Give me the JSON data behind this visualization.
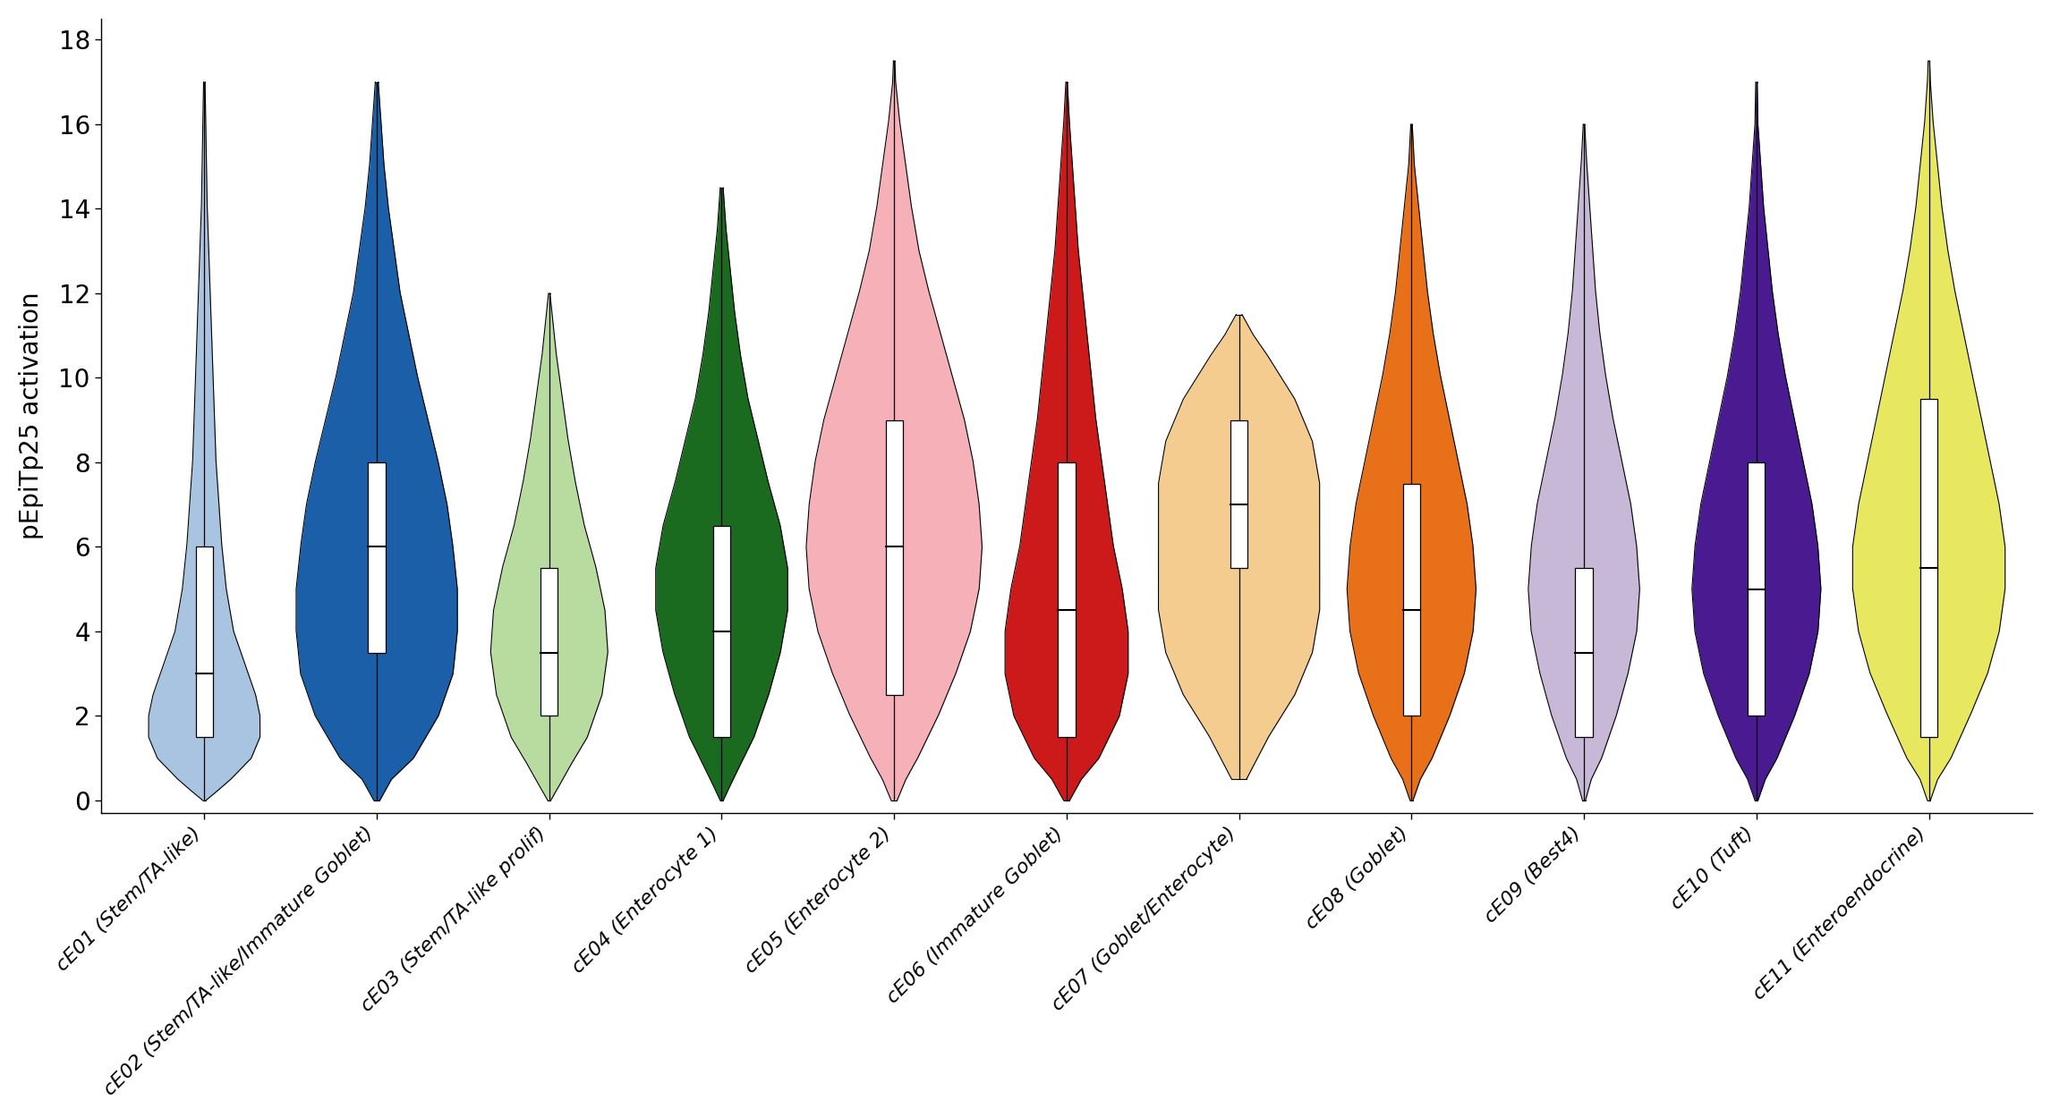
{
  "categories": [
    "cE01 (Stem/TA-like)",
    "cE02 (Stem/TA-like/Immature Goblet)",
    "cE03 (Stem/TA-like prolif)",
    "cE04 (Enterocyte 1)",
    "cE05 (Enterocyte 2)",
    "cE06 (Immature Goblet)",
    "cE07 (Goblet/Enterocyte)",
    "cE08 (Goblet)",
    "cE09 (Best4)",
    "cE10 (Tuft)",
    "cE11 (Enteroendocrine)"
  ],
  "colors": [
    "#a8c4e0",
    "#1a5fa8",
    "#b8dca0",
    "#1a6b20",
    "#f5b0b8",
    "#cc1a1a",
    "#f5cc90",
    "#e87018",
    "#c8b8d8",
    "#4a1a90",
    "#e8e860"
  ],
  "violin_shapes": [
    {
      "name": "cE01",
      "y_vals": [
        0.0,
        0.2,
        0.5,
        1.0,
        1.5,
        2.0,
        2.5,
        3.0,
        3.5,
        4.0,
        5.0,
        6.0,
        7.0,
        8.0,
        9.0,
        10.0,
        11.0,
        12.0,
        13.0,
        14.0,
        15.0,
        16.0,
        17.0
      ],
      "widths": [
        0.01,
        0.08,
        0.18,
        0.32,
        0.38,
        0.38,
        0.35,
        0.3,
        0.25,
        0.2,
        0.15,
        0.12,
        0.1,
        0.08,
        0.07,
        0.06,
        0.05,
        0.04,
        0.03,
        0.02,
        0.015,
        0.01,
        0.005
      ],
      "median": 3.0,
      "q1": 1.5,
      "q3": 6.0,
      "whisker_lo": 0.0,
      "whisker_hi": 17.0
    },
    {
      "name": "cE02",
      "y_vals": [
        0.0,
        0.5,
        1.0,
        2.0,
        3.0,
        4.0,
        5.0,
        6.0,
        7.0,
        8.0,
        9.0,
        10.0,
        11.0,
        12.0,
        13.0,
        14.0,
        15.0,
        16.0,
        17.0
      ],
      "widths": [
        0.02,
        0.1,
        0.25,
        0.42,
        0.52,
        0.55,
        0.55,
        0.52,
        0.48,
        0.42,
        0.35,
        0.28,
        0.22,
        0.16,
        0.12,
        0.08,
        0.05,
        0.03,
        0.01
      ],
      "median": 6.0,
      "q1": 3.5,
      "q3": 8.0,
      "whisker_lo": 0.0,
      "whisker_hi": 17.0
    },
    {
      "name": "cE03",
      "y_vals": [
        0.0,
        0.3,
        0.8,
        1.5,
        2.5,
        3.5,
        4.5,
        5.5,
        6.5,
        7.5,
        8.5,
        9.5,
        10.5,
        11.5,
        12.0
      ],
      "widths": [
        0.01,
        0.06,
        0.14,
        0.26,
        0.36,
        0.4,
        0.38,
        0.32,
        0.24,
        0.18,
        0.13,
        0.09,
        0.05,
        0.02,
        0.005
      ],
      "median": 3.5,
      "q1": 2.0,
      "q3": 5.5,
      "whisker_lo": 0.0,
      "whisker_hi": 12.0
    },
    {
      "name": "cE04",
      "y_vals": [
        0.0,
        0.3,
        0.8,
        1.5,
        2.5,
        3.5,
        4.5,
        5.5,
        6.5,
        7.5,
        8.5,
        9.5,
        10.5,
        11.5,
        12.5,
        13.5,
        14.5
      ],
      "widths": [
        0.01,
        0.05,
        0.12,
        0.22,
        0.32,
        0.4,
        0.45,
        0.45,
        0.4,
        0.32,
        0.25,
        0.18,
        0.13,
        0.09,
        0.06,
        0.03,
        0.01
      ],
      "median": 4.0,
      "q1": 1.5,
      "q3": 6.5,
      "whisker_lo": 0.0,
      "whisker_hi": 14.5
    },
    {
      "name": "cE05",
      "y_vals": [
        0.0,
        0.5,
        1.0,
        2.0,
        3.0,
        4.0,
        5.0,
        6.0,
        7.0,
        8.0,
        9.0,
        10.0,
        11.0,
        12.0,
        13.0,
        14.0,
        15.0,
        16.0,
        17.0,
        17.5
      ],
      "widths": [
        0.02,
        0.08,
        0.16,
        0.3,
        0.42,
        0.52,
        0.58,
        0.6,
        0.58,
        0.54,
        0.48,
        0.4,
        0.32,
        0.24,
        0.17,
        0.12,
        0.08,
        0.04,
        0.01,
        0.005
      ],
      "median": 6.0,
      "q1": 2.5,
      "q3": 9.0,
      "whisker_lo": 0.0,
      "whisker_hi": 17.5
    },
    {
      "name": "cE06",
      "y_vals": [
        0.0,
        0.5,
        1.0,
        2.0,
        3.0,
        4.0,
        5.0,
        6.0,
        7.0,
        8.0,
        9.0,
        10.0,
        11.0,
        12.0,
        13.0,
        14.0,
        15.0,
        16.0,
        17.0
      ],
      "widths": [
        0.02,
        0.1,
        0.22,
        0.36,
        0.42,
        0.42,
        0.38,
        0.32,
        0.28,
        0.24,
        0.2,
        0.17,
        0.14,
        0.11,
        0.08,
        0.06,
        0.04,
        0.02,
        0.005
      ],
      "median": 4.5,
      "q1": 1.5,
      "q3": 8.0,
      "whisker_lo": 0.0,
      "whisker_hi": 17.0
    },
    {
      "name": "cE07",
      "y_vals": [
        0.5,
        1.5,
        2.5,
        3.5,
        4.5,
        5.5,
        6.5,
        7.5,
        8.5,
        9.5,
        10.5,
        11.0,
        11.5
      ],
      "widths": [
        0.05,
        0.2,
        0.38,
        0.5,
        0.55,
        0.55,
        0.55,
        0.55,
        0.5,
        0.38,
        0.2,
        0.1,
        0.02
      ],
      "median": 7.0,
      "q1": 5.5,
      "q3": 9.0,
      "whisker_lo": 0.5,
      "whisker_hi": 11.5
    },
    {
      "name": "cE08",
      "y_vals": [
        0.0,
        0.5,
        1.0,
        2.0,
        3.0,
        4.0,
        5.0,
        6.0,
        7.0,
        8.0,
        9.0,
        10.0,
        11.0,
        12.0,
        13.0,
        14.0,
        15.0,
        16.0
      ],
      "widths": [
        0.01,
        0.06,
        0.14,
        0.26,
        0.36,
        0.42,
        0.44,
        0.42,
        0.38,
        0.32,
        0.26,
        0.2,
        0.15,
        0.11,
        0.08,
        0.05,
        0.02,
        0.005
      ],
      "median": 4.5,
      "q1": 2.0,
      "q3": 7.5,
      "whisker_lo": 0.0,
      "whisker_hi": 16.0
    },
    {
      "name": "cE09",
      "y_vals": [
        0.0,
        0.5,
        1.0,
        2.0,
        3.0,
        4.0,
        5.0,
        6.0,
        7.0,
        8.0,
        9.0,
        10.0,
        11.0,
        12.0,
        13.0,
        14.0,
        15.0,
        16.0
      ],
      "widths": [
        0.01,
        0.05,
        0.12,
        0.22,
        0.3,
        0.36,
        0.38,
        0.36,
        0.32,
        0.26,
        0.2,
        0.15,
        0.11,
        0.08,
        0.06,
        0.04,
        0.02,
        0.005
      ],
      "median": 3.5,
      "q1": 1.5,
      "q3": 5.5,
      "whisker_lo": 0.0,
      "whisker_hi": 16.0
    },
    {
      "name": "cE10",
      "y_vals": [
        0.0,
        0.5,
        1.0,
        2.0,
        3.0,
        4.0,
        5.0,
        6.0,
        7.0,
        8.0,
        9.0,
        10.0,
        11.0,
        12.0,
        13.0,
        14.0,
        15.0,
        16.0,
        17.0
      ],
      "widths": [
        0.01,
        0.06,
        0.14,
        0.26,
        0.36,
        0.42,
        0.44,
        0.42,
        0.38,
        0.32,
        0.26,
        0.2,
        0.15,
        0.11,
        0.08,
        0.05,
        0.03,
        0.01,
        0.005
      ],
      "median": 5.0,
      "q1": 2.0,
      "q3": 8.0,
      "whisker_lo": 0.0,
      "whisker_hi": 17.0
    },
    {
      "name": "cE11",
      "y_vals": [
        0.0,
        0.5,
        1.0,
        2.0,
        3.0,
        4.0,
        5.0,
        6.0,
        7.0,
        8.0,
        9.0,
        10.0,
        11.0,
        12.0,
        13.0,
        14.0,
        15.0,
        16.0,
        17.0,
        17.5
      ],
      "widths": [
        0.01,
        0.06,
        0.15,
        0.28,
        0.4,
        0.48,
        0.52,
        0.52,
        0.48,
        0.42,
        0.36,
        0.3,
        0.24,
        0.18,
        0.13,
        0.09,
        0.06,
        0.03,
        0.01,
        0.005
      ],
      "median": 5.5,
      "q1": 1.5,
      "q3": 9.5,
      "whisker_lo": 0.0,
      "whisker_hi": 17.5
    }
  ],
  "ylabel": "pEpiTp25 activation",
  "ylim": [
    -0.3,
    18.5
  ],
  "yticks": [
    0,
    2,
    4,
    6,
    8,
    10,
    12,
    14,
    16,
    18
  ],
  "figsize": [
    22.92,
    12.5
  ],
  "dpi": 100
}
